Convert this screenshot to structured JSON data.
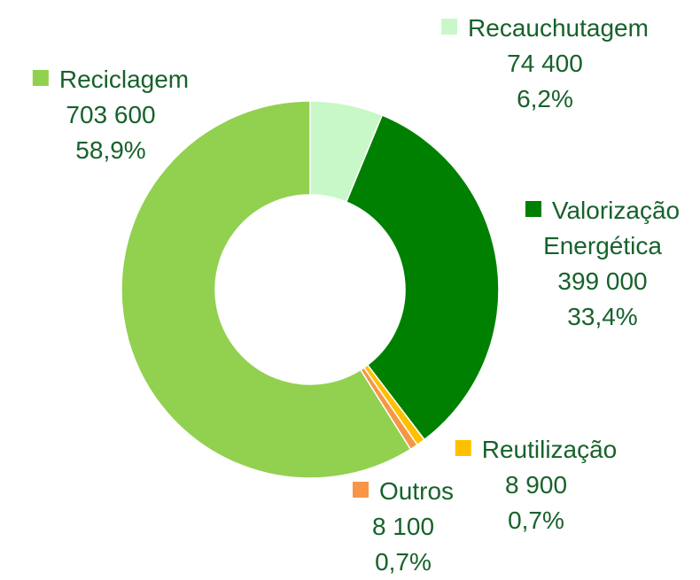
{
  "chart_data": {
    "type": "donut",
    "categories": [
      "Recauchutagem",
      "Valorização Energética",
      "Reutilização",
      "Outros",
      "Reciclagem"
    ],
    "values": [
      74400,
      399000,
      8900,
      8100,
      703600
    ],
    "value_labels": [
      "74 400",
      "399 000",
      "8 900",
      "8 100",
      "703 600"
    ],
    "percentages": [
      6.2,
      33.4,
      0.7,
      0.7,
      58.9
    ],
    "percentage_labels": [
      "6,2%",
      "33,4%",
      "0,7%",
      "0,7%",
      "58,9%"
    ],
    "colors": [
      "#c8f8c8",
      "#008000",
      "#ffc000",
      "#f79646",
      "#92d050"
    ]
  }
}
